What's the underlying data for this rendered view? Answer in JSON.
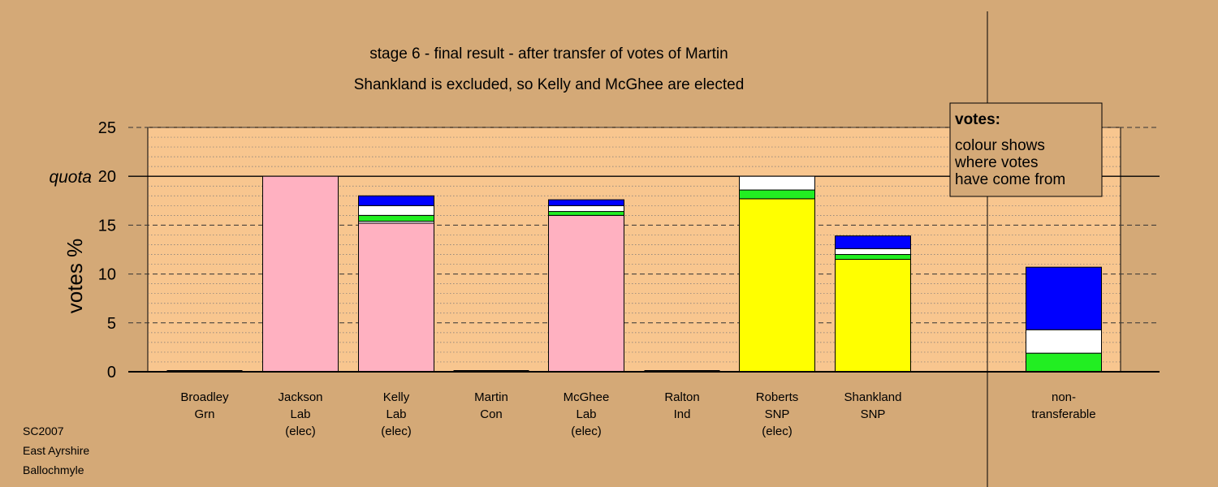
{
  "title_line1": "stage 6 - final result - after transfer of votes of Martin",
  "title_line2": "Shankland is excluded, so Kelly and McGhee are elected",
  "ylabel": "votes %",
  "quota_label": "quota",
  "legend": {
    "heading": "votes:",
    "lines": [
      "colour shows",
      "where votes",
      "have come from"
    ]
  },
  "footnote": [
    "SC2007",
    "East Ayrshire",
    "Ballochmyle"
  ],
  "colors": {
    "background": "#d4a977",
    "plot_band": "#f8c68f",
    "lab": "#ffb1c1",
    "snp": "#ffff00",
    "green": "#22ee22",
    "white": "#ffffff",
    "blue": "#0000ff"
  },
  "chart_data": {
    "type": "bar",
    "stacked": true,
    "ylim": [
      0,
      25
    ],
    "yticks": [
      0,
      5,
      10,
      15,
      20,
      25
    ],
    "quota": 20,
    "categories": [
      {
        "lines": [
          "Broadley",
          "Grn"
        ],
        "segments": []
      },
      {
        "lines": [
          "Jackson",
          "Lab",
          "(elec)"
        ],
        "segments": [
          {
            "color": "lab",
            "value": 20.0
          }
        ]
      },
      {
        "lines": [
          "Kelly",
          "Lab",
          "(elec)"
        ],
        "segments": [
          {
            "color": "lab",
            "value": 15.2
          },
          {
            "color": "white",
            "value": 0.2
          },
          {
            "color": "green",
            "value": 0.6
          },
          {
            "color": "white",
            "value": 1.0
          },
          {
            "color": "blue",
            "value": 1.0
          }
        ]
      },
      {
        "lines": [
          "Martin",
          "Con"
        ],
        "segments": []
      },
      {
        "lines": [
          "McGhee",
          "Lab",
          "(elec)"
        ],
        "segments": [
          {
            "color": "lab",
            "value": 16.0
          },
          {
            "color": "green",
            "value": 0.4
          },
          {
            "color": "white",
            "value": 0.6
          },
          {
            "color": "blue",
            "value": 0.6
          }
        ]
      },
      {
        "lines": [
          "Ralton",
          "Ind"
        ],
        "segments": []
      },
      {
        "lines": [
          "Roberts",
          "SNP",
          "(elec)"
        ],
        "segments": [
          {
            "color": "snp",
            "value": 17.7
          },
          {
            "color": "green",
            "value": 0.9
          },
          {
            "color": "white",
            "value": 1.4
          }
        ]
      },
      {
        "lines": [
          "Shankland",
          "SNP"
        ],
        "segments": [
          {
            "color": "snp",
            "value": 11.5
          },
          {
            "color": "green",
            "value": 0.5
          },
          {
            "color": "white",
            "value": 0.6
          },
          {
            "color": "blue",
            "value": 1.3
          }
        ]
      },
      {
        "lines": [
          "non-",
          "transferable"
        ],
        "segments": [
          {
            "color": "green",
            "value": 1.9
          },
          {
            "color": "white",
            "value": 2.4
          },
          {
            "color": "blue",
            "value": 6.4
          }
        ]
      }
    ]
  }
}
